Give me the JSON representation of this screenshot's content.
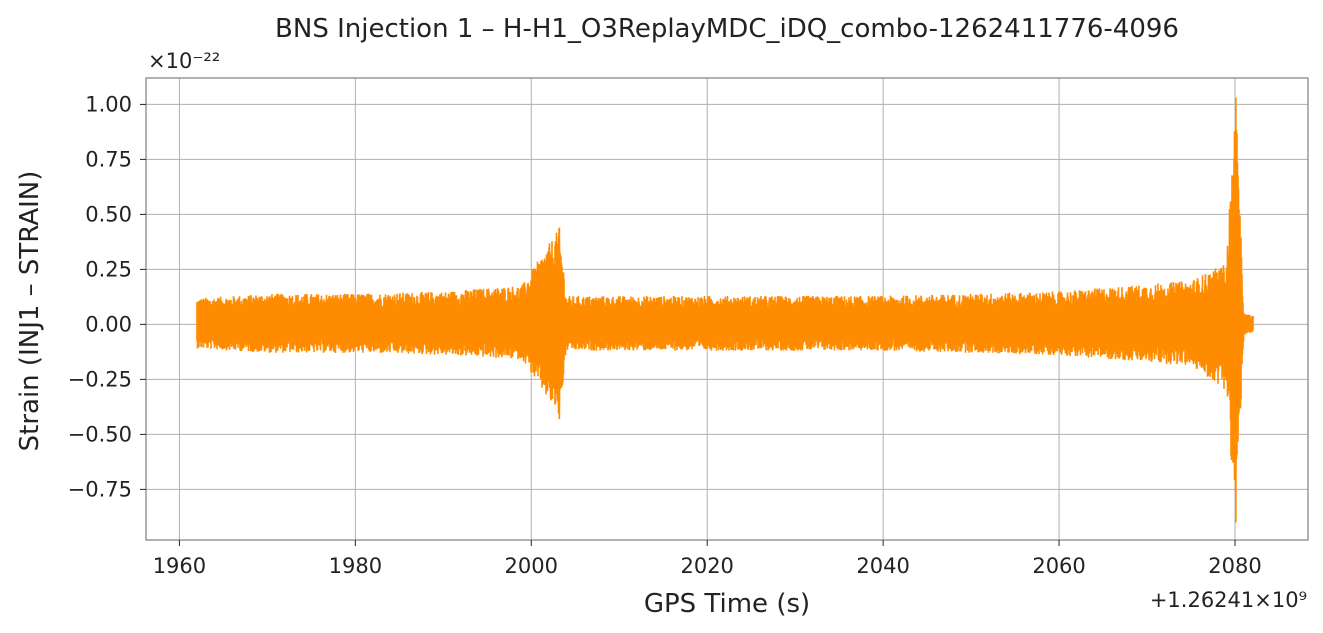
{
  "chart_data": {
    "type": "line",
    "title": "BNS Injection 1 – H-H1_O3ReplayMDC_iDQ_combo-1262411776-4096",
    "xlabel": "GPS Time (s)",
    "ylabel": "Strain (INJ1 – STRAIN)",
    "x_offset_label": "+1.26241×10⁹",
    "y_scale_label": "×10⁻²²",
    "xlim": [
      1956,
      1988.7
    ],
    "xlim_note": "axis shown as offset; data x spans approx 1962–2082 of offset",
    "x_range": [
      1956.2,
      2088.3
    ],
    "y_range": [
      -0.98,
      1.12
    ],
    "x_ticks": [
      1960,
      1980,
      2000,
      2020,
      2040,
      2060,
      2080
    ],
    "x_tick_labels": [
      "1960",
      "1980",
      "2000",
      "2020",
      "2040",
      "2060",
      "2080"
    ],
    "y_ticks": [
      1.0,
      0.75,
      0.5,
      0.25,
      0.0,
      -0.25,
      -0.5,
      -0.75
    ],
    "y_tick_labels": [
      "1.00",
      "0.75",
      "0.50",
      "0.25",
      "0.00",
      "−0.25",
      "−0.50",
      "−0.75"
    ],
    "grid": true,
    "color": "#ff8c00",
    "series": [
      {
        "x_start": 1962.0,
        "x_end": 2082.1,
        "baseline_amplitude": 0.1,
        "envelope_points": [
          {
            "x": 1962.0,
            "upper": 0.12,
            "lower": -0.11
          },
          {
            "x": 1970.0,
            "upper": 0.14,
            "lower": -0.13
          },
          {
            "x": 1980.0,
            "upper": 0.14,
            "lower": -0.13
          },
          {
            "x": 1990.0,
            "upper": 0.15,
            "lower": -0.14
          },
          {
            "x": 1999.0,
            "upper": 0.18,
            "lower": -0.16
          },
          {
            "x": 2003.2,
            "upper": 0.44,
            "lower": -0.43
          },
          {
            "x": 2004.0,
            "upper": 0.13,
            "lower": -0.12
          },
          {
            "x": 2020.0,
            "upper": 0.13,
            "lower": -0.12
          },
          {
            "x": 2040.0,
            "upper": 0.13,
            "lower": -0.12
          },
          {
            "x": 2060.0,
            "upper": 0.15,
            "lower": -0.14
          },
          {
            "x": 2075.0,
            "upper": 0.2,
            "lower": -0.19
          },
          {
            "x": 2079.0,
            "upper": 0.28,
            "lower": -0.3
          },
          {
            "x": 2080.1,
            "upper": 1.03,
            "lower": -0.9
          },
          {
            "x": 2081.0,
            "upper": 0.05,
            "lower": -0.05
          },
          {
            "x": 2082.1,
            "upper": 0.04,
            "lower": -0.04
          }
        ]
      }
    ]
  }
}
